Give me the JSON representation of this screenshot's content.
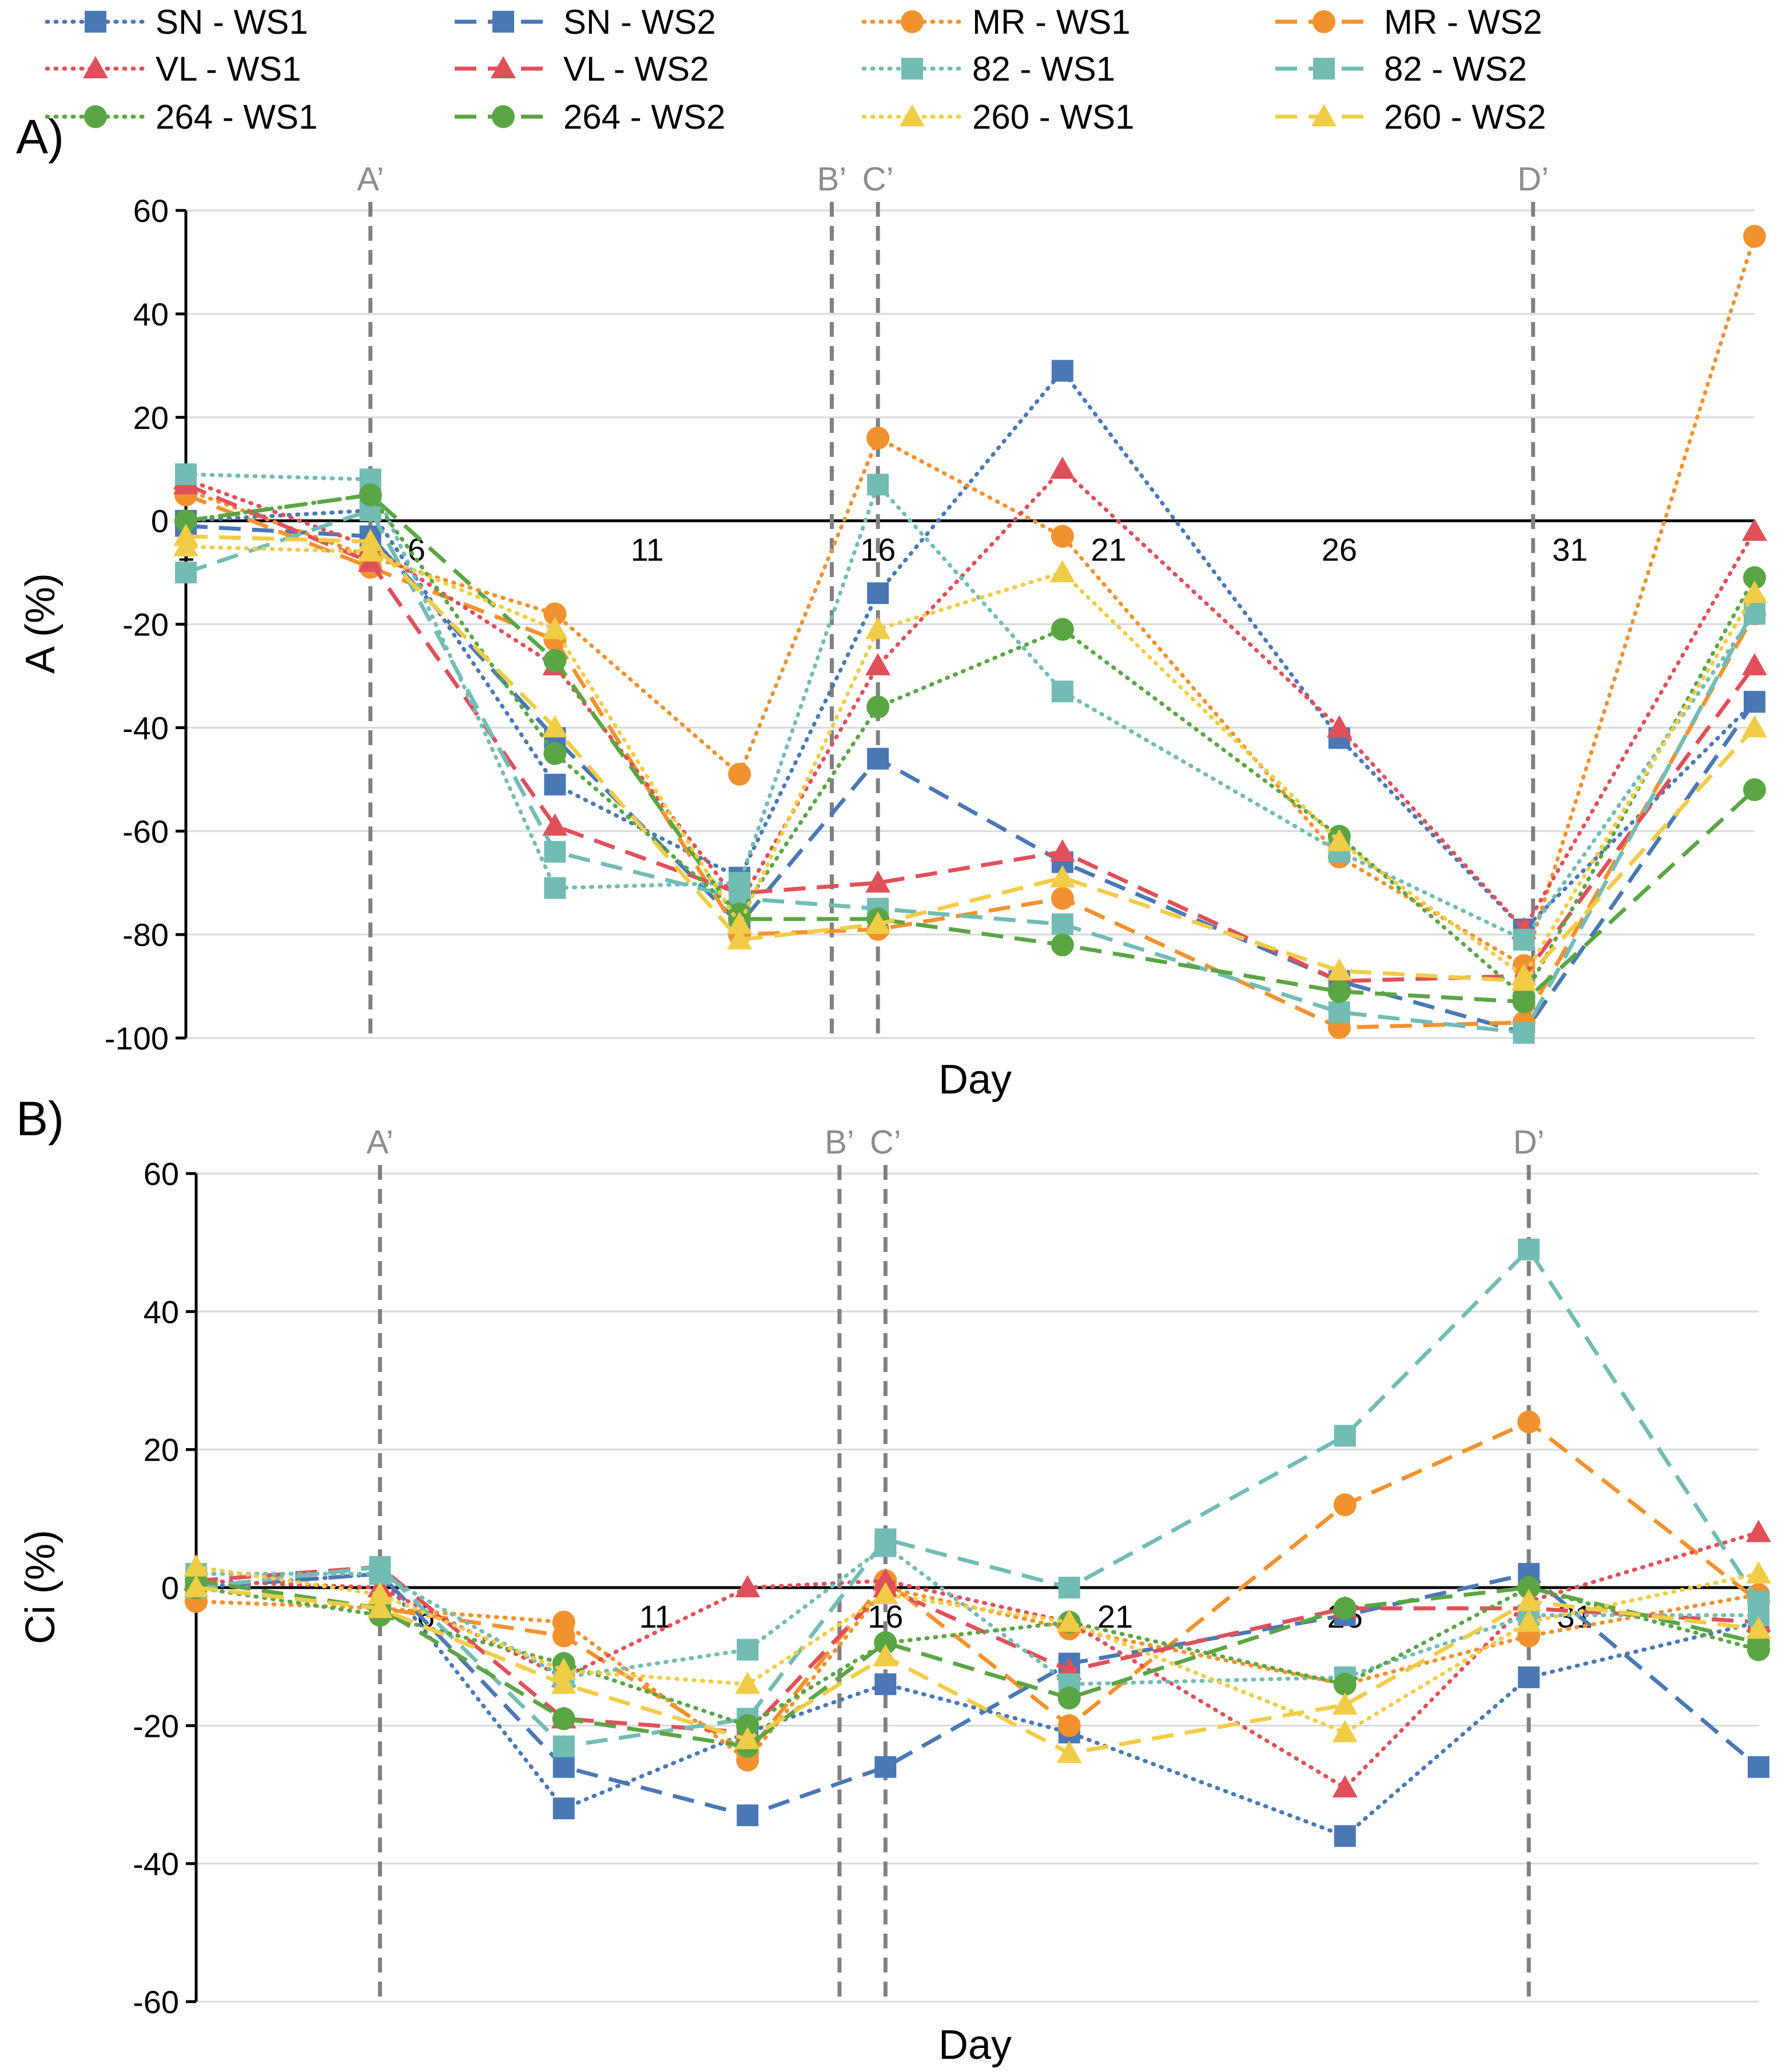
{
  "legend": {
    "entries": [
      {
        "label": "SN - WS1",
        "series": "SN-WS1"
      },
      {
        "label": "SN - WS2",
        "series": "SN-WS2"
      },
      {
        "label": "MR - WS1",
        "series": "MR-WS1"
      },
      {
        "label": "MR - WS2",
        "series": "MR-WS2"
      },
      {
        "label": "VL - WS1",
        "series": "VL-WS1"
      },
      {
        "label": "VL - WS2",
        "series": "VL-WS2"
      },
      {
        "label": "82 - WS1",
        "series": "82-WS1"
      },
      {
        "label": "82 - WS2",
        "series": "82-WS2"
      },
      {
        "label": "264 - WS1",
        "series": "264-WS1"
      },
      {
        "label": "264 - WS2",
        "series": "264-WS2"
      },
      {
        "label": "260 - WS1",
        "series": "260-WS1"
      },
      {
        "label": "260 - WS2",
        "series": "260-WS2"
      }
    ]
  },
  "series_styles": {
    "SN-WS1": {
      "color": "#4a78b5",
      "marker": "square",
      "dash": "dotted"
    },
    "SN-WS2": {
      "color": "#4a78b5",
      "marker": "square",
      "dash": "dashed"
    },
    "MR-WS1": {
      "color": "#f2922e",
      "marker": "circle",
      "dash": "dotted"
    },
    "MR-WS2": {
      "color": "#f2922e",
      "marker": "circle",
      "dash": "dashed"
    },
    "VL-WS1": {
      "color": "#e0505a",
      "marker": "triangle",
      "dash": "dotted"
    },
    "VL-WS2": {
      "color": "#e0505a",
      "marker": "triangle",
      "dash": "dashed"
    },
    "82-WS1": {
      "color": "#72bcb4",
      "marker": "square",
      "dash": "dotted"
    },
    "82-WS2": {
      "color": "#72bcb4",
      "marker": "square",
      "dash": "dashed"
    },
    "264-WS1": {
      "color": "#5aa544",
      "marker": "circle",
      "dash": "dotted"
    },
    "264-WS2": {
      "color": "#5aa544",
      "marker": "circle",
      "dash": "dashed"
    },
    "260-WS1": {
      "color": "#f1cc46",
      "marker": "triangle",
      "dash": "dotted"
    },
    "260-WS2": {
      "color": "#f1cc46",
      "marker": "triangle",
      "dash": "dashed"
    }
  },
  "chart_data": [
    {
      "type": "line",
      "panel_label": "A)",
      "xlabel": "Day",
      "ylabel": "A (%)",
      "xlim": [
        1,
        35
      ],
      "ylim": [
        -100,
        60
      ],
      "x_ticks": [
        1,
        6,
        11,
        16,
        21,
        26,
        31
      ],
      "y_ticks": [
        60,
        40,
        20,
        0,
        -20,
        -40,
        -60,
        -80,
        -100
      ],
      "grid": "horizontal",
      "legend_position": "top",
      "event_lines": [
        {
          "label": "A’",
          "x": 5
        },
        {
          "label": "B’",
          "x": 15
        },
        {
          "label": "C’",
          "x": 16
        },
        {
          "label": "D’",
          "x": 30.2
        }
      ],
      "x": [
        1,
        5,
        9,
        13,
        16,
        20,
        26,
        30,
        35
      ],
      "series": [
        {
          "name": "SN - WS1",
          "values": [
            0,
            2,
            -51,
            -69,
            -14,
            29,
            -42,
            -79,
            -35
          ]
        },
        {
          "name": "SN - WS2",
          "values": [
            -1,
            -3,
            -42,
            -78,
            -46,
            -66,
            -89,
            -99,
            -35
          ]
        },
        {
          "name": "MR - WS1",
          "values": [
            6,
            -7,
            -18,
            -49,
            16,
            -3,
            -65,
            -86,
            55
          ]
        },
        {
          "name": "MR - WS2",
          "values": [
            5,
            -9,
            -23,
            -80,
            -79,
            -73,
            -98,
            -97,
            -18
          ]
        },
        {
          "name": "VL - WS1",
          "values": [
            8,
            -5,
            -28,
            -74,
            -28,
            10,
            -40,
            -79,
            -2
          ]
        },
        {
          "name": "VL - WS2",
          "values": [
            7,
            -8,
            -59,
            -72,
            -70,
            -64,
            -89,
            -88,
            -28
          ]
        },
        {
          "name": "82 - WS1",
          "values": [
            9,
            8,
            -71,
            -70,
            7,
            -33,
            -64,
            -81,
            -18
          ]
        },
        {
          "name": "82 - WS2",
          "values": [
            -10,
            2,
            -64,
            -73,
            -75,
            -78,
            -95,
            -99,
            -17
          ]
        },
        {
          "name": "264 - WS1",
          "values": [
            0,
            5,
            -45,
            -76,
            -36,
            -21,
            -61,
            -92,
            -11
          ]
        },
        {
          "name": "264 - WS2",
          "values": [
            0,
            5,
            -27,
            -77,
            -77,
            -82,
            -91,
            -93,
            -52
          ]
        },
        {
          "name": "260 - WS1",
          "values": [
            -5,
            -6,
            -21,
            -78,
            -21,
            -10,
            -62,
            -88,
            -14
          ]
        },
        {
          "name": "260 - WS2",
          "values": [
            -3,
            -4,
            -40,
            -81,
            -78,
            -69,
            -87,
            -89,
            -40
          ]
        }
      ]
    },
    {
      "type": "line",
      "panel_label": "B)",
      "xlabel": "Day",
      "ylabel": "Ci (%)",
      "xlim": [
        1,
        35
      ],
      "ylim": [
        -60,
        60
      ],
      "x_ticks": [
        6,
        11,
        16,
        21,
        26,
        31
      ],
      "y_ticks": [
        60,
        40,
        20,
        0,
        -20,
        -40,
        -60
      ],
      "grid": "horizontal",
      "event_lines": [
        {
          "label": "A’",
          "x": 5
        },
        {
          "label": "B’",
          "x": 15
        },
        {
          "label": "C’",
          "x": 16
        },
        {
          "label": "D’",
          "x": 30
        }
      ],
      "x": [
        1,
        5,
        9,
        13,
        16,
        20,
        26,
        30,
        35
      ],
      "series": [
        {
          "name": "SN - WS1",
          "values": [
            0,
            2,
            -32,
            -21,
            -14,
            -21,
            -36,
            -13,
            -5
          ]
        },
        {
          "name": "SN - WS2",
          "values": [
            0,
            2,
            -26,
            -33,
            -26,
            -11,
            -4,
            2,
            -26
          ]
        },
        {
          "name": "MR - WS1",
          "values": [
            -2,
            -3,
            -5,
            -25,
            0,
            -6,
            -14,
            -7,
            -1
          ]
        },
        {
          "name": "MR - WS2",
          "values": [
            0,
            -3,
            -7,
            -24,
            1,
            -20,
            12,
            24,
            -2
          ]
        },
        {
          "name": "VL - WS1",
          "values": [
            1,
            0,
            -13,
            0,
            1,
            -5,
            -29,
            -2,
            8
          ]
        },
        {
          "name": "VL - WS2",
          "values": [
            1,
            3,
            -19,
            -21,
            0,
            -12,
            -3,
            -3,
            -5
          ]
        },
        {
          "name": "82 - WS1",
          "values": [
            2,
            2,
            -13,
            -9,
            6,
            -14,
            -13,
            -4,
            -4
          ]
        },
        {
          "name": "82 - WS2",
          "values": [
            0,
            3,
            -23,
            -19,
            7,
            0,
            22,
            49,
            -2
          ]
        },
        {
          "name": "264 - WS1",
          "values": [
            0,
            -4,
            -11,
            -20,
            -8,
            -5,
            -14,
            0,
            -9
          ]
        },
        {
          "name": "264 - WS2",
          "values": [
            1,
            -3,
            -19,
            -23,
            -8,
            -16,
            -3,
            0,
            -8
          ]
        },
        {
          "name": "260 - WS1",
          "values": [
            3,
            -1,
            -12,
            -14,
            -1,
            -5,
            -21,
            -5,
            2
          ]
        },
        {
          "name": "260 - WS2",
          "values": [
            0,
            -3,
            -14,
            -22,
            -10,
            -24,
            -17,
            -2,
            -6
          ]
        }
      ]
    }
  ]
}
